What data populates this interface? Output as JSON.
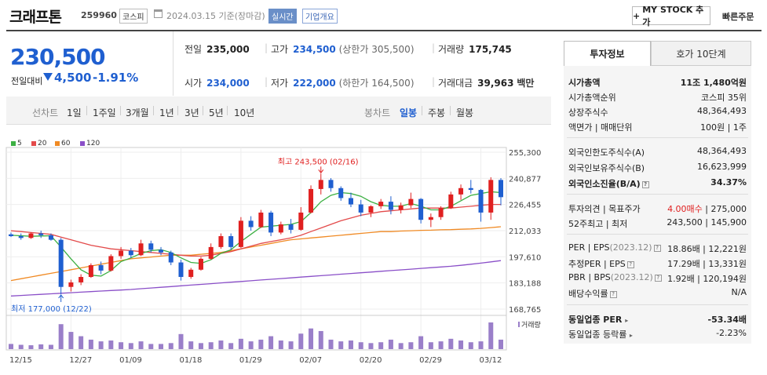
{
  "header": {
    "name": "크래프톤",
    "code": "259960",
    "market": "코스피",
    "date": "2024.03.15 기준(장마감)",
    "realtime": "실시간",
    "info": "기업개요",
    "mystock": "MY STOCK 추가",
    "quick": "빠른주문"
  },
  "quote": {
    "price": "230,500",
    "change_label": "전일대비",
    "change": "4,500",
    "change_pct": "-1.91%",
    "prev_label": "전일",
    "prev": "235,000",
    "high_label": "고가",
    "high": "234,500",
    "high_limit": "(상한가 305,500)",
    "volume_label": "거래량",
    "volume": "175,745",
    "open_label": "시가",
    "open": "234,000",
    "low_label": "저가",
    "low": "222,000",
    "low_limit": "(하한가 164,500)",
    "amount_label": "거래대금",
    "amount": "39,963",
    "amount_unit": "백만"
  },
  "periods": {
    "line_label": "선차트",
    "line_items": [
      "1일",
      "1주일",
      "3개월",
      "1년",
      "3년",
      "5년",
      "10년"
    ],
    "candle_label": "봉차트",
    "candle_items": [
      "일봉",
      "주봉",
      "월봉"
    ],
    "active": "일봉"
  },
  "chart_data": {
    "type": "candlestick",
    "legend": [
      {
        "name": "5",
        "color": "#3cb043"
      },
      {
        "name": "20",
        "color": "#e34a4a"
      },
      {
        "name": "60",
        "color": "#f08a24"
      },
      {
        "name": "120",
        "color": "#8a4fc8"
      }
    ],
    "yticks": [
      "255,300",
      "240,877",
      "226,455",
      "212,033",
      "197,610",
      "183,188",
      "168,765"
    ],
    "ylim": [
      168765,
      255300
    ],
    "xticks": [
      {
        "i": 0,
        "label": "12/15"
      },
      {
        "i": 6,
        "label": "12/27"
      },
      {
        "i": 11,
        "label": "01/09"
      },
      {
        "i": 17,
        "label": "01/18"
      },
      {
        "i": 23,
        "label": "01/29"
      },
      {
        "i": 29,
        "label": "02/07"
      },
      {
        "i": 35,
        "label": "02/20"
      },
      {
        "i": 41,
        "label": "02/29"
      },
      {
        "i": 47,
        "label": "03/12"
      }
    ],
    "high_note": "최고 243,500 (02/16)",
    "low_note": "최저 177,000 (12/22)",
    "volume_label": "거래량",
    "colors": {
      "up": "#e02020",
      "down": "#1f5fd0"
    },
    "candles": [
      [
        210000,
        211000,
        208500,
        209000
      ],
      [
        209000,
        210500,
        207000,
        208000
      ],
      [
        208000,
        211000,
        207500,
        210500
      ],
      [
        210500,
        212000,
        208000,
        209500
      ],
      [
        209500,
        210500,
        206500,
        207000
      ],
      [
        207000,
        208000,
        177000,
        181000
      ],
      [
        181000,
        185000,
        178500,
        183500
      ],
      [
        183500,
        188000,
        182000,
        186500
      ],
      [
        186500,
        194000,
        186000,
        193000
      ],
      [
        193000,
        195000,
        188000,
        190000
      ],
      [
        190000,
        199000,
        189500,
        198000
      ],
      [
        198000,
        203000,
        196500,
        201000
      ],
      [
        201000,
        202500,
        197000,
        198500
      ],
      [
        198500,
        207000,
        198000,
        205000
      ],
      [
        205000,
        206500,
        200000,
        201500
      ],
      [
        201500,
        203000,
        198500,
        200000
      ],
      [
        200000,
        201000,
        193000,
        194500
      ],
      [
        194500,
        196000,
        184500,
        186500
      ],
      [
        186500,
        191500,
        185500,
        190500
      ],
      [
        190500,
        197500,
        190000,
        196500
      ],
      [
        196500,
        205000,
        196000,
        203000
      ],
      [
        203000,
        210500,
        202000,
        209000
      ],
      [
        209000,
        210500,
        201500,
        203000
      ],
      [
        203000,
        219500,
        202500,
        217500
      ],
      [
        217500,
        220000,
        212000,
        214000
      ],
      [
        214000,
        223500,
        213500,
        222000
      ],
      [
        222000,
        223000,
        209000,
        211000
      ],
      [
        211000,
        217000,
        210000,
        215500
      ],
      [
        215500,
        218500,
        210500,
        212500
      ],
      [
        212500,
        225000,
        212000,
        222000
      ],
      [
        222000,
        237000,
        221500,
        235000
      ],
      [
        235000,
        243500,
        232000,
        240000
      ],
      [
        240000,
        241000,
        233500,
        235500
      ],
      [
        235500,
        236500,
        228500,
        230000
      ],
      [
        230000,
        233000,
        225000,
        226500
      ],
      [
        226500,
        229000,
        220000,
        222000
      ],
      [
        222000,
        226000,
        219500,
        225500
      ],
      [
        225500,
        229500,
        224000,
        228000
      ],
      [
        228000,
        231000,
        221000,
        223500
      ],
      [
        223500,
        227500,
        221500,
        226000
      ],
      [
        226000,
        233000,
        224500,
        229500
      ],
      [
        229500,
        230000,
        216000,
        218000
      ],
      [
        218000,
        221500,
        214000,
        219500
      ],
      [
        219500,
        225500,
        218000,
        224500
      ],
      [
        224500,
        233500,
        224000,
        232000
      ],
      [
        232000,
        237500,
        229000,
        235500
      ],
      [
        235500,
        240000,
        232500,
        234500
      ],
      [
        234500,
        235000,
        217000,
        222000
      ],
      [
        222000,
        241500,
        218000,
        240000
      ],
      [
        240000,
        241000,
        226000,
        230500
      ]
    ],
    "ma5": [
      209500,
      209200,
      208900,
      209100,
      209200,
      203000,
      196500,
      190500,
      187500,
      187000,
      190000,
      195000,
      197000,
      199500,
      201000,
      201500,
      200000,
      197000,
      194500,
      194000,
      196000,
      199500,
      201500,
      206000,
      210000,
      214000,
      214500,
      215000,
      215500,
      217000,
      222000,
      228000,
      231500,
      233000,
      232500,
      231000,
      228000,
      226000,
      225500,
      225500,
      227000,
      225500,
      223500,
      223500,
      225500,
      228500,
      231500,
      232500,
      233500,
      233000
    ],
    "ma20": [
      212000,
      211500,
      211000,
      210500,
      210000,
      208500,
      207000,
      205500,
      204000,
      203000,
      202000,
      201500,
      201000,
      200500,
      200000,
      199500,
      199000,
      198500,
      198000,
      198000,
      198500,
      199500,
      200500,
      202000,
      203500,
      205000,
      206000,
      207000,
      208000,
      209500,
      211500,
      213500,
      215500,
      217500,
      219000,
      220500,
      221500,
      222500,
      223000,
      223500,
      224000,
      224500,
      224500,
      224500,
      224500,
      225000,
      225500,
      226000,
      226500,
      226500
    ],
    "ma60": [
      184500,
      185500,
      186500,
      187500,
      188500,
      189500,
      190500,
      191500,
      192500,
      193500,
      194500,
      195500,
      196500,
      197000,
      197500,
      198000,
      198500,
      198500,
      198500,
      199000,
      199500,
      200000,
      201000,
      202000,
      203000,
      204000,
      205000,
      206000,
      207000,
      207500,
      208000,
      208500,
      209000,
      209500,
      210000,
      210500,
      211000,
      211500,
      211500,
      211800,
      212000,
      212200,
      212300,
      212500,
      212600,
      212800,
      213000,
      213300,
      213700,
      214200
    ],
    "ma120": [
      176000,
      176300,
      176600,
      176900,
      177200,
      177500,
      177800,
      178100,
      178400,
      178700,
      179000,
      179300,
      179600,
      180000,
      180400,
      180800,
      181200,
      181600,
      182000,
      182400,
      182800,
      183200,
      183600,
      184000,
      184400,
      184800,
      185200,
      185600,
      186000,
      186400,
      186800,
      187200,
      187600,
      188000,
      188400,
      188800,
      189200,
      189600,
      190000,
      190400,
      190800,
      191200,
      191600,
      192000,
      192400,
      192900,
      193500,
      194100,
      194800,
      195500
    ],
    "volumes": [
      12,
      10,
      9,
      11,
      10,
      58,
      40,
      30,
      22,
      18,
      20,
      16,
      14,
      18,
      12,
      12,
      14,
      35,
      18,
      14,
      16,
      20,
      14,
      24,
      18,
      22,
      30,
      20,
      18,
      36,
      48,
      42,
      22,
      18,
      20,
      16,
      14,
      16,
      22,
      14,
      16,
      30,
      16,
      18,
      24,
      20,
      16,
      18,
      62,
      22
    ]
  },
  "right": {
    "tab_on": "투자정보",
    "tab_off": "호가 10단계",
    "rows1": [
      {
        "l": "시가총액",
        "r": "11조 1,480억원",
        "bold": true
      },
      {
        "l": "시가총액순위",
        "r": "코스피 35위"
      },
      {
        "l": "상장주식수",
        "r": "48,364,493"
      },
      {
        "l": "액면가 | 매매단위",
        "r": "100원 | 1주"
      }
    ],
    "rows2": [
      {
        "l": "외국인한도주식수(A)",
        "r": "48,364,493"
      },
      {
        "l": "외국인보유주식수(B)",
        "r": "16,623,999"
      },
      {
        "l": "외국인소진율(B/A)",
        "r": "34.37%",
        "bold": true
      }
    ],
    "opinion_label": "투자의견 | 목표주가",
    "opinion": "4.00매수",
    "target": "275,000",
    "w52_label": "52주최고 | 최저",
    "w52": "243,500 | 145,900",
    "per_label": "PER | EPS",
    "per_year": "(2023.12)",
    "per": "18.86배 | 12,221원",
    "est_label": "추정PER | EPS",
    "est": "17.29배 | 13,331원",
    "pbr_label": "PBR | BPS",
    "pbr_year": "(2023.12)",
    "pbr": "1.92배 | 120,194원",
    "div_label": "배당수익률",
    "div": "N/A",
    "ind_per_label": "동일업종 PER",
    "ind_per": "-53.34배",
    "ind_rate_label": "동일업종 등락률",
    "ind_rate": "-2.23%"
  }
}
